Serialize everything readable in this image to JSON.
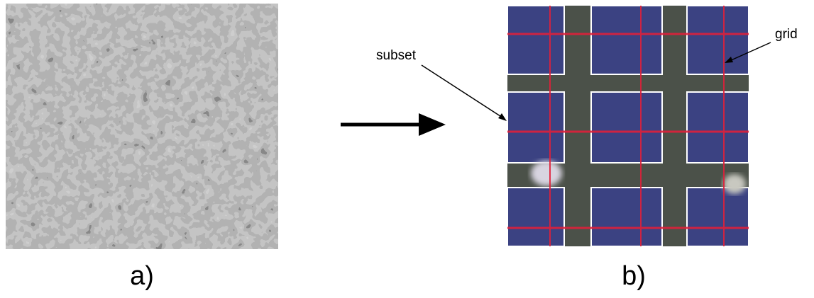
{
  "annotations": {
    "subset": "subset",
    "grid": "grid"
  },
  "panels": [
    {
      "label": "a)"
    },
    {
      "label": "b)"
    }
  ]
}
